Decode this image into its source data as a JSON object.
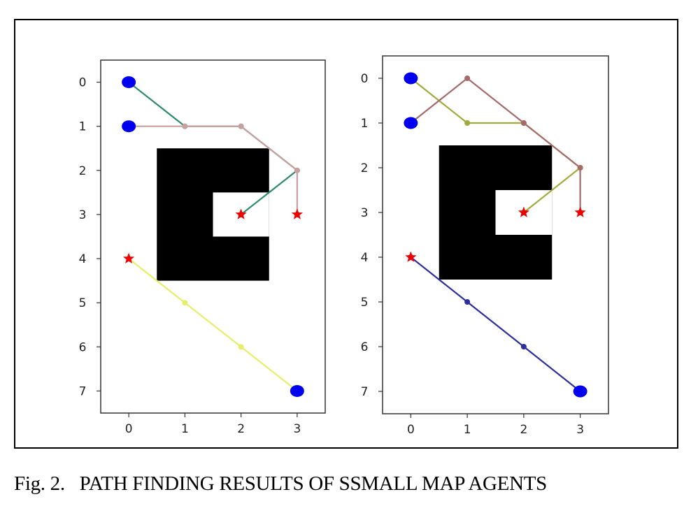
{
  "caption": "Fig. 2.   PATH FINDING RESULTS OF SSMALL MAP AGENTS",
  "chart_data": [
    {
      "type": "grid-path",
      "x_ticks": [
        "0",
        "1",
        "2",
        "3"
      ],
      "y_ticks": [
        "0",
        "1",
        "2",
        "3",
        "4",
        "5",
        "6",
        "7"
      ],
      "xlim": [
        -0.5,
        3.5
      ],
      "ylim": [
        7.5,
        -0.5
      ],
      "y_inverted": true,
      "obstacles": [
        {
          "x0": 0.5,
          "x1": 2.5,
          "y0": 1.5,
          "y1": 4.5,
          "color": "#000000"
        },
        {
          "x0": 1.5,
          "x1": 2.5,
          "y0": 2.5,
          "y1": 3.5,
          "color": "#ffffff"
        }
      ],
      "paths": [
        {
          "color": "#2e8b6e",
          "points": [
            [
              0,
              0
            ],
            [
              1,
              1
            ],
            [
              2,
              1
            ],
            [
              3,
              2
            ],
            [
              2,
              3
            ]
          ]
        },
        {
          "color": "#c9a0a0",
          "points": [
            [
              0,
              1
            ],
            [
              1,
              1
            ],
            [
              2,
              1
            ],
            [
              3,
              2
            ],
            [
              3,
              3
            ]
          ]
        },
        {
          "color": "#e6ee6a",
          "points": [
            [
              3,
              7
            ],
            [
              2,
              6
            ],
            [
              1,
              5
            ],
            [
              0,
              4
            ]
          ]
        }
      ],
      "starts": [
        {
          "x": 0,
          "y": 0,
          "color": "#0000ee"
        },
        {
          "x": 0,
          "y": 1,
          "color": "#0000ee"
        },
        {
          "x": 3,
          "y": 7,
          "color": "#0000ee"
        }
      ],
      "goals": [
        {
          "x": 2,
          "y": 3,
          "color": "#ee0000"
        },
        {
          "x": 3,
          "y": 3,
          "color": "#ee0000"
        },
        {
          "x": 0,
          "y": 4,
          "color": "#ee0000"
        }
      ]
    },
    {
      "type": "grid-path",
      "x_ticks": [
        "0",
        "1",
        "2",
        "3"
      ],
      "y_ticks": [
        "0",
        "1",
        "2",
        "3",
        "4",
        "5",
        "6",
        "7"
      ],
      "xlim": [
        -0.5,
        3.5
      ],
      "ylim": [
        7.5,
        -0.5
      ],
      "y_inverted": true,
      "obstacles": [
        {
          "x0": 0.5,
          "x1": 2.5,
          "y0": 1.5,
          "y1": 4.5,
          "color": "#000000"
        },
        {
          "x0": 1.5,
          "x1": 2.5,
          "y0": 2.5,
          "y1": 3.5,
          "color": "#ffffff"
        }
      ],
      "paths": [
        {
          "color": "#a0ab3c",
          "points": [
            [
              0,
              0
            ],
            [
              1,
              1
            ],
            [
              2,
              1
            ],
            [
              3,
              2
            ],
            [
              2,
              3
            ]
          ]
        },
        {
          "color": "#a56a6a",
          "points": [
            [
              0,
              1
            ],
            [
              1,
              0
            ],
            [
              2,
              1
            ],
            [
              3,
              2
            ],
            [
              3,
              3
            ]
          ]
        },
        {
          "color": "#2b2f9e",
          "points": [
            [
              3,
              7
            ],
            [
              2,
              6
            ],
            [
              1,
              5
            ],
            [
              0,
              4
            ]
          ]
        }
      ],
      "starts": [
        {
          "x": 0,
          "y": 0,
          "color": "#0000ee"
        },
        {
          "x": 0,
          "y": 1,
          "color": "#0000ee"
        },
        {
          "x": 3,
          "y": 7,
          "color": "#0000ee"
        }
      ],
      "goals": [
        {
          "x": 2,
          "y": 3,
          "color": "#ee0000"
        },
        {
          "x": 3,
          "y": 3,
          "color": "#ee0000"
        },
        {
          "x": 0,
          "y": 4,
          "color": "#ee0000"
        }
      ]
    }
  ]
}
